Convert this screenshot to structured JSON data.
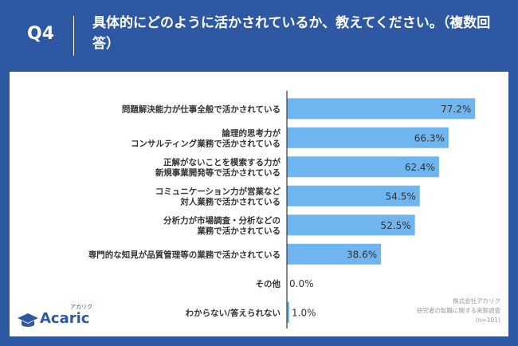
{
  "header": {
    "question_label": "Q4",
    "title": "具体的にどのように活かされているか、教えてください。（複数回答）"
  },
  "chart_data": {
    "type": "bar",
    "orientation": "horizontal",
    "categories": [
      [
        "問題解決能力が仕事全般で活かされている"
      ],
      [
        "論理的思考力が",
        "コンサルティング業務で活かされている"
      ],
      [
        "正解がないことを模索する力が",
        "新規事業開発等で活かされている"
      ],
      [
        "コミュニケーション力が営業など",
        "対人業務で活かされている"
      ],
      [
        "分析力が市場調査・分析などの",
        "業務で活かされている"
      ],
      [
        "専門的な知見が品質管理等の業務で活かされている"
      ],
      [
        "その他"
      ],
      [
        "わからない/答えられない"
      ]
    ],
    "values": [
      77.2,
      66.3,
      62.4,
      54.5,
      52.5,
      38.6,
      0.0,
      1.0
    ],
    "value_labels": [
      "77.2%",
      "66.3%",
      "62.4%",
      "54.5%",
      "52.5%",
      "38.6%",
      "0.0%",
      "1.0%"
    ],
    "xlim": [
      0,
      100
    ],
    "bar_color": "#6fb5ef",
    "axis_color": "#333333"
  },
  "footer": {
    "logo_text": "Acaric",
    "logo_kana": "アカリク",
    "source_lines": [
      "株式会社アカリク",
      "研究者の転職に関する実態調査",
      "(n=101)"
    ]
  },
  "colors": {
    "background": "#2f58a3",
    "card": "#ffffff",
    "accent": "#2f58a3"
  }
}
